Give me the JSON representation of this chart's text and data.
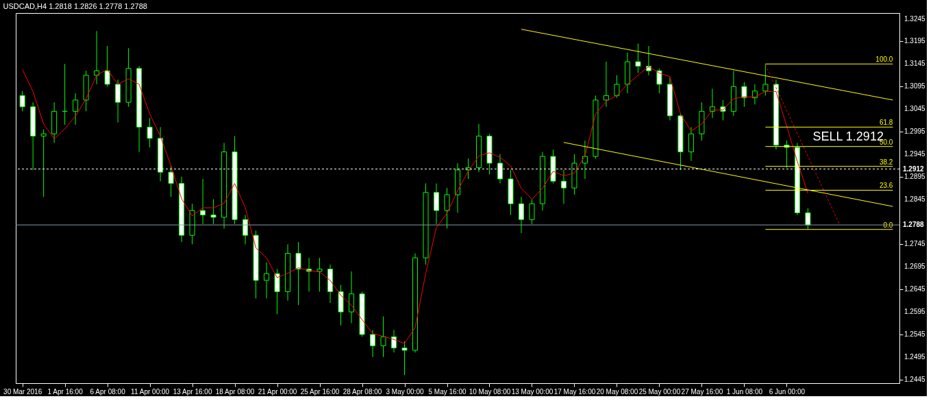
{
  "chart_data": {
    "type": "candlestick",
    "title": "USDCAD,H4  1.2818 1.2826 1.2778 1.2788",
    "categories": [
      "30 Mar 2016",
      null,
      null,
      null,
      "1 Apr 16:00",
      null,
      null,
      null,
      "6 Apr 08:00",
      null,
      null,
      null,
      "11 Apr 00:00",
      null,
      null,
      null,
      "13 Apr 16:00",
      null,
      null,
      null,
      "18 Apr 08:00",
      null,
      null,
      null,
      "21 Apr 00:00",
      null,
      null,
      null,
      "25 Apr 16:00",
      null,
      null,
      null,
      "28 Apr 08:00",
      null,
      null,
      null,
      "3 May 00:00",
      null,
      null,
      null,
      "5 May 16:00",
      null,
      null,
      null,
      "10 May 08:00",
      null,
      null,
      null,
      "13 May 00:00",
      null,
      null,
      null,
      "17 May 16:00",
      null,
      null,
      null,
      "20 May 08:00",
      null,
      null,
      null,
      "25 May 00:00",
      null,
      null,
      null,
      "27 May 16:00",
      null,
      null,
      null,
      "1 Jun 08:00",
      null,
      null,
      null,
      "6 Jun 00:00",
      null,
      null,
      null,
      null,
      null,
      null,
      null,
      null,
      null,
      null
    ],
    "ohlc": [
      [
        1.3075,
        1.3085,
        1.304,
        1.305
      ],
      [
        1.305,
        1.306,
        1.291,
        1.2985
      ],
      [
        1.2985,
        1.3,
        1.285,
        1.299
      ],
      [
        1.299,
        1.306,
        1.297,
        1.304
      ],
      [
        1.304,
        1.3145,
        1.301,
        1.304
      ],
      [
        1.304,
        1.308,
        1.301,
        1.3065
      ],
      [
        1.3065,
        1.313,
        1.304,
        1.312
      ],
      [
        1.312,
        1.3218,
        1.31,
        1.313
      ],
      [
        1.313,
        1.3185,
        1.3095,
        1.31
      ],
      [
        1.31,
        1.311,
        1.3015,
        1.306
      ],
      [
        1.306,
        1.318,
        1.305,
        1.3135
      ],
      [
        1.3135,
        1.314,
        1.295,
        1.3005
      ],
      [
        1.3005,
        1.3025,
        1.296,
        1.298
      ],
      [
        1.298,
        1.3005,
        1.2885,
        1.2905
      ],
      [
        1.2905,
        1.292,
        1.285,
        1.288
      ],
      [
        1.288,
        1.2895,
        1.275,
        1.2765
      ],
      [
        1.2765,
        1.2835,
        1.2745,
        1.282
      ],
      [
        1.282,
        1.289,
        1.279,
        1.281
      ],
      [
        1.281,
        1.2845,
        1.279,
        1.2805
      ],
      [
        1.2805,
        1.297,
        1.278,
        1.295
      ],
      [
        1.295,
        1.2985,
        1.279,
        1.28
      ],
      [
        1.28,
        1.281,
        1.2745,
        1.2765
      ],
      [
        1.2765,
        1.2775,
        1.2625,
        1.2665
      ],
      [
        1.2665,
        1.2705,
        1.2625,
        1.268
      ],
      [
        1.268,
        1.269,
        1.259,
        1.264
      ],
      [
        1.264,
        1.2745,
        1.262,
        1.2725
      ],
      [
        1.2725,
        1.275,
        1.261,
        1.269
      ],
      [
        1.269,
        1.2715,
        1.264,
        1.2685
      ],
      [
        1.2685,
        1.2715,
        1.264,
        1.269
      ],
      [
        1.269,
        1.27,
        1.2615,
        1.264
      ],
      [
        1.264,
        1.2655,
        1.2565,
        1.2595
      ],
      [
        1.2595,
        1.2685,
        1.257,
        1.2635
      ],
      [
        1.2635,
        1.264,
        1.254,
        1.2545
      ],
      [
        1.2545,
        1.2555,
        1.2495,
        1.252
      ],
      [
        1.252,
        1.2585,
        1.2495,
        1.254
      ],
      [
        1.254,
        1.2555,
        1.2505,
        1.2515
      ],
      [
        1.2515,
        1.253,
        1.2455,
        1.251
      ],
      [
        1.251,
        1.2725,
        1.2505,
        1.2715
      ],
      [
        1.2715,
        1.288,
        1.27,
        1.286
      ],
      [
        1.286,
        1.288,
        1.279,
        1.282
      ],
      [
        1.282,
        1.287,
        1.278,
        1.2855
      ],
      [
        1.2855,
        1.2925,
        1.2815,
        1.291
      ],
      [
        1.291,
        1.2935,
        1.289,
        1.2915
      ],
      [
        1.2915,
        1.3012,
        1.2905,
        1.2985
      ],
      [
        1.2985,
        1.299,
        1.29,
        1.2925
      ],
      [
        1.2925,
        1.2945,
        1.288,
        1.289
      ],
      [
        1.289,
        1.291,
        1.281,
        1.2835
      ],
      [
        1.2835,
        1.285,
        1.277,
        1.28
      ],
      [
        1.28,
        1.2845,
        1.279,
        1.2835
      ],
      [
        1.2835,
        1.295,
        1.282,
        1.294
      ],
      [
        1.294,
        1.2955,
        1.288,
        1.2885
      ],
      [
        1.2885,
        1.291,
        1.2835,
        1.287
      ],
      [
        1.287,
        1.2945,
        1.2855,
        1.2925
      ],
      [
        1.2925,
        1.2975,
        1.289,
        1.294
      ],
      [
        1.294,
        1.3075,
        1.2935,
        1.3065
      ],
      [
        1.3065,
        1.315,
        1.305,
        1.3075
      ],
      [
        1.3075,
        1.312,
        1.307,
        1.31
      ],
      [
        1.31,
        1.317,
        1.308,
        1.315
      ],
      [
        1.315,
        1.319,
        1.3125,
        1.314
      ],
      [
        1.314,
        1.3185,
        1.312,
        1.313
      ],
      [
        1.313,
        1.3135,
        1.308,
        1.31
      ],
      [
        1.31,
        1.3115,
        1.302,
        1.303
      ],
      [
        1.303,
        1.3035,
        1.291,
        1.295
      ],
      [
        1.295,
        1.3005,
        1.293,
        1.299
      ],
      [
        1.299,
        1.306,
        1.2975,
        1.304
      ],
      [
        1.304,
        1.309,
        1.3025,
        1.305
      ],
      [
        1.305,
        1.3065,
        1.302,
        1.304
      ],
      [
        1.304,
        1.313,
        1.303,
        1.3095
      ],
      [
        1.3095,
        1.3105,
        1.305,
        1.307
      ],
      [
        1.307,
        1.31,
        1.3055,
        1.3085
      ],
      [
        1.3085,
        1.3145,
        1.3075,
        1.31
      ],
      [
        1.31,
        1.311,
        1.2955,
        1.2965
      ],
      [
        1.2965,
        1.2975,
        1.2915,
        1.296
      ],
      [
        1.296,
        1.297,
        1.281,
        1.2815
      ],
      [
        1.2815,
        1.2825,
        1.2778,
        1.2788
      ],
      null,
      null,
      null,
      null,
      null,
      null,
      null,
      null
    ],
    "series": [
      {
        "type": "line",
        "color": "#ff0000",
        "values": [
          1.3133,
          1.3084,
          1.3012,
          1.2979,
          1.3001,
          1.3029,
          1.3068,
          1.312,
          1.3133,
          1.31,
          1.3112,
          1.31,
          1.3034,
          1.2985,
          1.2919,
          1.2846,
          1.2808,
          1.2826,
          1.2826,
          1.2836,
          1.288,
          1.2826,
          1.2737,
          1.2715,
          1.2671,
          1.2681,
          1.2693,
          1.2687,
          1.2684,
          1.2665,
          1.2632,
          1.261,
          1.2578,
          1.2547,
          1.2541,
          1.2534,
          1.2525,
          1.256,
          1.2681,
          1.2782,
          1.2814,
          1.2864,
          1.2907,
          1.2941,
          1.2948,
          1.2938,
          1.2919,
          1.2869,
          1.2845,
          1.2869,
          1.2907,
          1.2897,
          1.2903,
          1.2941,
          1.3034,
          1.3062,
          1.3075,
          1.31,
          1.312,
          1.3139,
          1.3125,
          1.3117,
          1.3034,
          1.2996,
          1.3012,
          1.3043,
          1.3043,
          1.3068,
          1.3072,
          1.3072,
          1.3084,
          1.3084,
          1.3007,
          1.2929,
          1.2858,
          null,
          null,
          null,
          null,
          null,
          null,
          null,
          null
        ]
      },
      {
        "type": "line",
        "color": "#ffff00",
        "values": [
          null,
          null,
          null,
          null,
          null,
          null,
          null,
          null,
          null,
          null,
          null,
          null,
          null,
          null,
          null,
          null,
          null,
          null,
          null,
          null,
          null,
          null,
          null,
          null,
          null,
          null,
          null,
          null,
          null,
          null,
          null,
          null,
          null,
          null,
          null,
          null,
          null,
          null,
          null,
          null,
          null,
          null,
          null,
          null,
          null,
          null,
          null,
          1.3222,
          null,
          null,
          null,
          null,
          null,
          null,
          null,
          null,
          null,
          null,
          null,
          null,
          null,
          null,
          null,
          null,
          null,
          null,
          null,
          null,
          null,
          null,
          null,
          null,
          null,
          null,
          null,
          null,
          null,
          null,
          null,
          null,
          null,
          null,
          1.3065
        ]
      },
      {
        "type": "line",
        "color": "#ffff00",
        "values": [
          null,
          null,
          null,
          null,
          null,
          null,
          null,
          null,
          null,
          null,
          null,
          null,
          null,
          null,
          null,
          null,
          null,
          null,
          null,
          null,
          null,
          null,
          null,
          null,
          null,
          null,
          null,
          null,
          null,
          null,
          null,
          null,
          null,
          null,
          null,
          null,
          null,
          null,
          null,
          null,
          null,
          null,
          null,
          null,
          null,
          null,
          null,
          null,
          null,
          null,
          null,
          1.2971,
          null,
          null,
          null,
          null,
          null,
          null,
          null,
          null,
          null,
          null,
          null,
          null,
          null,
          null,
          null,
          null,
          null,
          null,
          null,
          null,
          null,
          null,
          null,
          null,
          null,
          null,
          null,
          null,
          null,
          null,
          1.2829
        ]
      },
      {
        "type": "line",
        "color": "#ff0000",
        "line_style": "dashed",
        "values": [
          null,
          null,
          null,
          null,
          null,
          null,
          null,
          null,
          null,
          null,
          null,
          null,
          null,
          null,
          null,
          null,
          null,
          null,
          null,
          null,
          null,
          null,
          null,
          null,
          null,
          null,
          null,
          null,
          null,
          null,
          null,
          null,
          null,
          null,
          null,
          null,
          null,
          null,
          null,
          null,
          null,
          null,
          null,
          null,
          null,
          null,
          null,
          null,
          null,
          null,
          null,
          null,
          null,
          null,
          null,
          null,
          null,
          null,
          null,
          null,
          null,
          null,
          null,
          null,
          null,
          null,
          null,
          null,
          null,
          null,
          1.3143,
          null,
          null,
          null,
          null,
          null,
          null,
          1.2788,
          null,
          null,
          null,
          null,
          null
        ]
      },
      {
        "type": "line",
        "color": "#ffff00",
        "name": "100.0",
        "values": [
          null,
          null,
          null,
          null,
          null,
          null,
          null,
          null,
          null,
          null,
          null,
          null,
          null,
          null,
          null,
          null,
          null,
          null,
          null,
          null,
          null,
          null,
          null,
          null,
          null,
          null,
          null,
          null,
          null,
          null,
          null,
          null,
          null,
          null,
          null,
          null,
          null,
          null,
          null,
          null,
          null,
          null,
          null,
          null,
          null,
          null,
          null,
          null,
          null,
          null,
          null,
          null,
          null,
          null,
          null,
          null,
          null,
          null,
          null,
          null,
          null,
          null,
          null,
          null,
          null,
          null,
          null,
          null,
          null,
          null,
          1.3145,
          null,
          null,
          null,
          null,
          null,
          null,
          null,
          null,
          null,
          null,
          null,
          1.3145
        ]
      },
      {
        "type": "line",
        "color": "#ffff00",
        "name": "61.8",
        "values": [
          null,
          null,
          null,
          null,
          null,
          null,
          null,
          null,
          null,
          null,
          null,
          null,
          null,
          null,
          null,
          null,
          null,
          null,
          null,
          null,
          null,
          null,
          null,
          null,
          null,
          null,
          null,
          null,
          null,
          null,
          null,
          null,
          null,
          null,
          null,
          null,
          null,
          null,
          null,
          null,
          null,
          null,
          null,
          null,
          null,
          null,
          null,
          null,
          null,
          null,
          null,
          null,
          null,
          null,
          null,
          null,
          null,
          null,
          null,
          null,
          null,
          null,
          null,
          null,
          null,
          null,
          null,
          null,
          null,
          null,
          1.3005,
          null,
          null,
          null,
          null,
          null,
          null,
          null,
          null,
          null,
          null,
          null,
          1.3005
        ]
      },
      {
        "type": "line",
        "color": "#ffff00",
        "name": "50.0",
        "values": [
          null,
          null,
          null,
          null,
          null,
          null,
          null,
          null,
          null,
          null,
          null,
          null,
          null,
          null,
          null,
          null,
          null,
          null,
          null,
          null,
          null,
          null,
          null,
          null,
          null,
          null,
          null,
          null,
          null,
          null,
          null,
          null,
          null,
          null,
          null,
          null,
          null,
          null,
          null,
          null,
          null,
          null,
          null,
          null,
          null,
          null,
          null,
          null,
          null,
          null,
          null,
          null,
          null,
          null,
          null,
          null,
          null,
          null,
          null,
          null,
          null,
          null,
          null,
          null,
          null,
          null,
          null,
          null,
          null,
          null,
          1.2962,
          null,
          null,
          null,
          null,
          null,
          null,
          null,
          null,
          null,
          null,
          null,
          1.2962
        ]
      },
      {
        "type": "line",
        "color": "#ffff00",
        "name": "38.2",
        "values": [
          null,
          null,
          null,
          null,
          null,
          null,
          null,
          null,
          null,
          null,
          null,
          null,
          null,
          null,
          null,
          null,
          null,
          null,
          null,
          null,
          null,
          null,
          null,
          null,
          null,
          null,
          null,
          null,
          null,
          null,
          null,
          null,
          null,
          null,
          null,
          null,
          null,
          null,
          null,
          null,
          null,
          null,
          null,
          null,
          null,
          null,
          null,
          null,
          null,
          null,
          null,
          null,
          null,
          null,
          null,
          null,
          null,
          null,
          null,
          null,
          null,
          null,
          null,
          null,
          null,
          null,
          null,
          null,
          null,
          null,
          1.2918,
          null,
          null,
          null,
          null,
          null,
          null,
          null,
          null,
          null,
          null,
          null,
          1.2918
        ]
      },
      {
        "type": "line",
        "color": "#ffff00",
        "name": "23.6",
        "values": [
          null,
          null,
          null,
          null,
          null,
          null,
          null,
          null,
          null,
          null,
          null,
          null,
          null,
          null,
          null,
          null,
          null,
          null,
          null,
          null,
          null,
          null,
          null,
          null,
          null,
          null,
          null,
          null,
          null,
          null,
          null,
          null,
          null,
          null,
          null,
          null,
          null,
          null,
          null,
          null,
          null,
          null,
          null,
          null,
          null,
          null,
          null,
          null,
          null,
          null,
          null,
          null,
          null,
          null,
          null,
          null,
          null,
          null,
          null,
          null,
          null,
          null,
          null,
          null,
          null,
          null,
          null,
          null,
          null,
          null,
          1.2865,
          null,
          null,
          null,
          null,
          null,
          null,
          null,
          null,
          null,
          null,
          null,
          1.2865
        ]
      },
      {
        "type": "line",
        "color": "#ffff00",
        "name": "0.0",
        "values": [
          null,
          null,
          null,
          null,
          null,
          null,
          null,
          null,
          null,
          null,
          null,
          null,
          null,
          null,
          null,
          null,
          null,
          null,
          null,
          null,
          null,
          null,
          null,
          null,
          null,
          null,
          null,
          null,
          null,
          null,
          null,
          null,
          null,
          null,
          null,
          null,
          null,
          null,
          null,
          null,
          null,
          null,
          null,
          null,
          null,
          null,
          null,
          null,
          null,
          null,
          null,
          null,
          null,
          null,
          null,
          null,
          null,
          null,
          null,
          null,
          null,
          null,
          null,
          null,
          null,
          null,
          null,
          null,
          null,
          null,
          1.2778,
          null,
          null,
          null,
          null,
          null,
          null,
          null,
          null,
          null,
          null,
          null,
          1.2778
        ]
      }
    ],
    "annotations": [
      "SELL 1.2912"
    ],
    "ref_lines": [
      {
        "axis": "y",
        "value": 1.2912,
        "label": "1.2912",
        "color": "#ffffff",
        "line_style": "dashed"
      },
      {
        "axis": "y",
        "value": 1.2788,
        "label": "1.2788",
        "color": "#8899aa"
      }
    ],
    "ylim": [
      1.2437,
      1.3258
    ],
    "yticks": [
      1.3245,
      1.3195,
      1.3145,
      1.3095,
      1.3045,
      1.2995,
      1.2945,
      1.2895,
      1.2845,
      1.2745,
      1.2695,
      1.2645,
      1.2595,
      1.2545,
      1.2495,
      1.2445
    ],
    "grid": false
  }
}
